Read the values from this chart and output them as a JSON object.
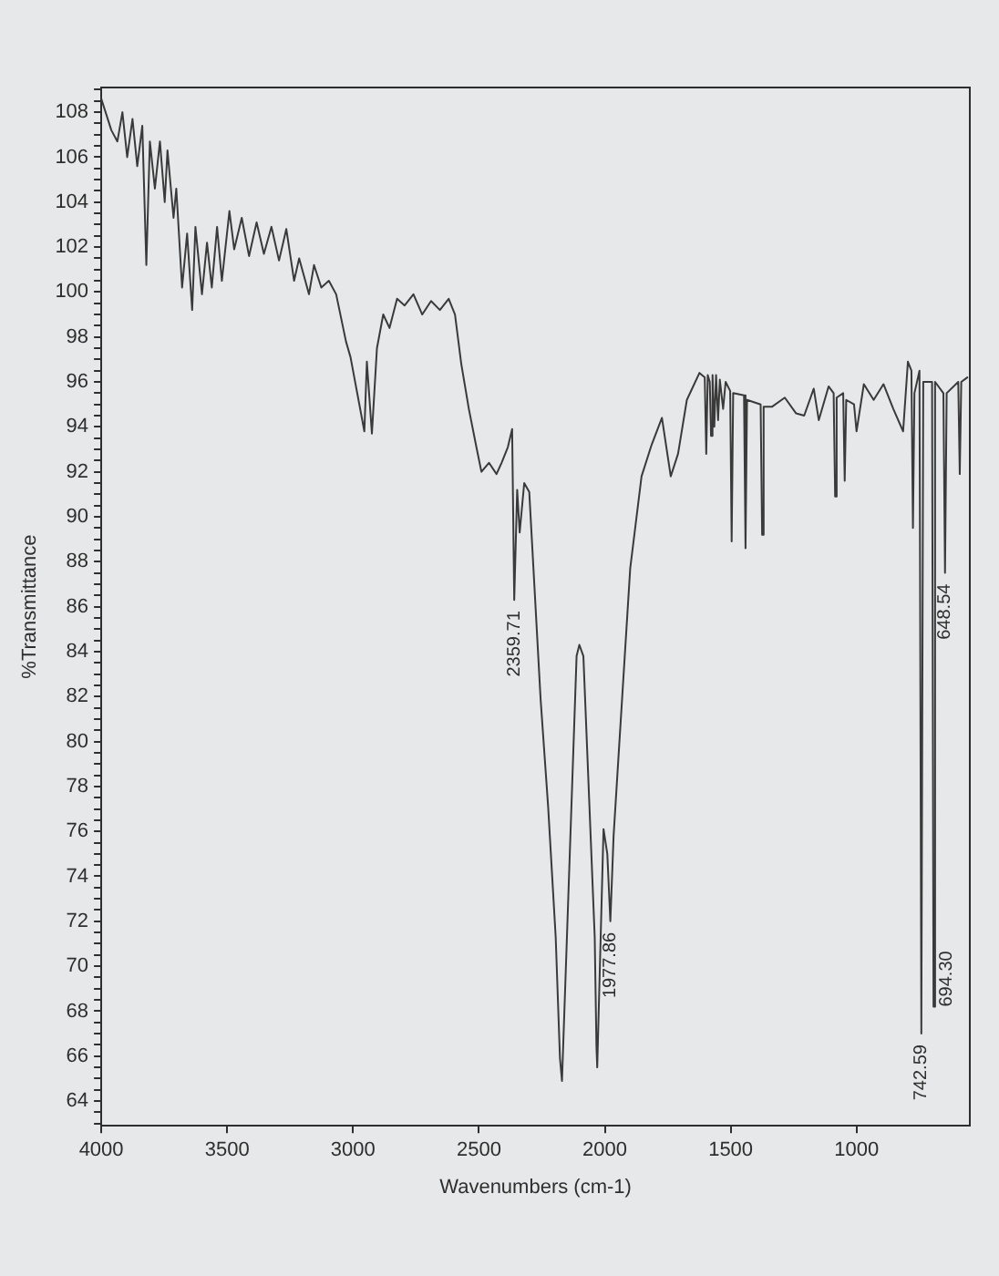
{
  "chart_data": {
    "type": "line",
    "xlabel": "Wavenumbers (cm-1)",
    "ylabel": "%Transmittance",
    "color": "#3a3a3a",
    "grid": false,
    "legend": false,
    "marker": "none",
    "line_style": "solid",
    "xlim": [
      4000,
      550
    ],
    "xticks": [
      4000,
      3500,
      3000,
      2500,
      2000,
      1500,
      1000
    ],
    "ylim": [
      62.9,
      109.1
    ],
    "yticks": [
      {
        "value": 63,
        "label": null
      },
      {
        "value": 63.5,
        "label": null
      },
      64,
      {
        "value": 64.5,
        "label": null
      },
      {
        "value": 65,
        "label": null
      },
      {
        "value": 65.5,
        "label": null
      },
      66,
      {
        "value": 66.5,
        "label": null
      },
      {
        "value": 67,
        "label": null
      },
      {
        "value": 67.5,
        "label": null
      },
      68,
      {
        "value": 68.5,
        "label": null
      },
      {
        "value": 69,
        "label": null
      },
      {
        "value": 69.5,
        "label": null
      },
      70,
      {
        "value": 70.5,
        "label": null
      },
      {
        "value": 71,
        "label": null
      },
      {
        "value": 71.5,
        "label": null
      },
      72,
      {
        "value": 72.5,
        "label": null
      },
      {
        "value": 73,
        "label": null
      },
      {
        "value": 73.5,
        "label": null
      },
      74,
      {
        "value": 74.5,
        "label": null
      },
      {
        "value": 75,
        "label": null
      },
      {
        "value": 75.5,
        "label": null
      },
      76,
      {
        "value": 76.5,
        "label": null
      },
      {
        "value": 77,
        "label": null
      },
      {
        "value": 77.5,
        "label": null
      },
      78,
      {
        "value": 78.5,
        "label": null
      },
      {
        "value": 79,
        "label": null
      },
      {
        "value": 79.5,
        "label": null
      },
      80,
      {
        "value": 80.5,
        "label": null
      },
      {
        "value": 81,
        "label": null
      },
      {
        "value": 81.5,
        "label": null
      },
      82,
      {
        "value": 82.5,
        "label": null
      },
      {
        "value": 83,
        "label": null
      },
      {
        "value": 83.5,
        "label": null
      },
      84,
      {
        "value": 84.5,
        "label": null
      },
      {
        "value": 85,
        "label": null
      },
      {
        "value": 85.5,
        "label": null
      },
      86,
      {
        "value": 86.5,
        "label": null
      },
      {
        "value": 87,
        "label": null
      },
      {
        "value": 87.5,
        "label": null
      },
      88,
      {
        "value": 88.5,
        "label": null
      },
      {
        "value": 89,
        "label": null
      },
      {
        "value": 89.5,
        "label": null
      },
      90,
      {
        "value": 90.5,
        "label": null
      },
      {
        "value": 91,
        "label": null
      },
      {
        "value": 91.5,
        "label": null
      },
      92,
      {
        "value": 92.5,
        "label": null
      },
      {
        "value": 93,
        "label": null
      },
      {
        "value": 93.5,
        "label": null
      },
      94,
      {
        "value": 94.5,
        "label": null
      },
      {
        "value": 95,
        "label": null
      },
      {
        "value": 95.5,
        "label": null
      },
      96,
      {
        "value": 96.5,
        "label": null
      },
      {
        "value": 97,
        "label": null
      },
      {
        "value": 97.5,
        "label": null
      },
      98,
      {
        "value": 98.5,
        "label": null
      },
      {
        "value": 99,
        "label": null
      },
      {
        "value": 99.5,
        "label": null
      },
      100,
      {
        "value": 100.5,
        "label": null
      },
      {
        "value": 101,
        "label": null
      },
      {
        "value": 101.5,
        "label": null
      },
      102,
      {
        "value": 102.5,
        "label": null
      },
      {
        "value": 103,
        "label": null
      },
      {
        "value": 103.5,
        "label": null
      },
      104,
      {
        "value": 104.5,
        "label": null
      },
      {
        "value": 105,
        "label": null
      },
      {
        "value": 105.5,
        "label": null
      },
      106,
      {
        "value": 106.5,
        "label": null
      },
      {
        "value": 107,
        "label": null
      },
      {
        "value": 107.5,
        "label": null
      },
      108,
      {
        "value": 108.5,
        "label": null
      },
      {
        "value": 109,
        "label": null
      }
    ],
    "x": [
      4000,
      3960,
      3936,
      3916,
      3897,
      3876,
      3857,
      3837,
      3821,
      3807,
      3787,
      3767,
      3748,
      3737,
      3713,
      3702,
      3679,
      3659,
      3639,
      3626,
      3600,
      3580,
      3561,
      3540,
      3521,
      3491,
      3472,
      3442,
      3413,
      3383,
      3354,
      3324,
      3294,
      3265,
      3234,
      3214,
      3175,
      3155,
      3126,
      3096,
      3067,
      3028,
      3010,
      2955,
      2945,
      2925,
      2905,
      2880,
      2855,
      2825,
      2795,
      2760,
      2725,
      2690,
      2655,
      2620,
      2595,
      2570,
      2540,
      2510,
      2490,
      2460,
      2430,
      2410,
      2385,
      2368,
      2359.71,
      2348,
      2338,
      2320,
      2300,
      2255,
      2225,
      2195,
      2178,
      2170,
      2112,
      2101,
      2085,
      2040,
      2033,
      2030,
      2005,
      1990,
      1977.86,
      1965,
      1944,
      1899,
      1854,
      1814,
      1773,
      1738,
      1709,
      1674,
      1624,
      1603,
      1597,
      1591,
      1583,
      1578,
      1572,
      1565,
      1558,
      1550,
      1543,
      1530,
      1520,
      1502,
      1496,
      1490,
      1447,
      1441,
      1435,
      1381,
      1375,
      1369,
      1335,
      1285,
      1240,
      1208,
      1170,
      1150,
      1111,
      1091,
      1085,
      1079,
      1053,
      1047,
      1041,
      1010,
      1000,
      971,
      932,
      893,
      854,
      815,
      796,
      782,
      776,
      770,
      750,
      742.59,
      735,
      700,
      694.3,
      688,
      655,
      648.54,
      642,
      596,
      590,
      584,
      560
    ],
    "values": [
      108.6,
      107.2,
      106.7,
      108.0,
      106.0,
      107.7,
      105.6,
      107.4,
      101.2,
      106.7,
      104.6,
      106.7,
      104.0,
      106.3,
      103.3,
      104.6,
      100.2,
      102.6,
      99.2,
      102.9,
      99.9,
      102.2,
      100.2,
      102.9,
      100.5,
      103.6,
      101.9,
      103.3,
      101.6,
      103.1,
      101.7,
      102.9,
      101.4,
      102.8,
      100.5,
      101.5,
      99.9,
      101.2,
      100.2,
      100.5,
      99.9,
      97.8,
      97.1,
      93.8,
      96.9,
      93.7,
      97.5,
      99.0,
      98.4,
      99.7,
      99.4,
      99.9,
      99.0,
      99.6,
      99.2,
      99.7,
      99.0,
      96.8,
      94.8,
      93.1,
      92.0,
      92.4,
      91.9,
      92.4,
      93.1,
      93.9,
      86.3,
      91.2,
      89.3,
      91.5,
      91.1,
      81.9,
      77.1,
      71.3,
      65.9,
      64.9,
      83.8,
      84.3,
      83.8,
      71.3,
      66.4,
      65.5,
      76.1,
      75.0,
      72.0,
      75.8,
      79.6,
      87.7,
      91.8,
      93.2,
      94.4,
      91.8,
      92.8,
      95.2,
      96.4,
      96.2,
      92.8,
      96.3,
      96.0,
      93.6,
      96.3,
      94.0,
      96.3,
      94.3,
      96.1,
      94.8,
      96.0,
      95.6,
      88.9,
      95.5,
      95.4,
      88.6,
      95.2,
      95.0,
      89.2,
      94.9,
      94.9,
      95.3,
      94.6,
      94.5,
      95.7,
      94.3,
      95.8,
      95.5,
      90.9,
      95.3,
      95.5,
      91.6,
      95.2,
      95.0,
      93.8,
      95.9,
      95.2,
      95.9,
      94.8,
      93.8,
      96.9,
      96.5,
      89.5,
      95.5,
      96.5,
      67.0,
      96.0,
      96.0,
      68.2,
      96.0,
      95.5,
      87.5,
      95.5,
      96.0,
      91.9,
      96.0,
      96.2
    ],
    "annotations": [
      {
        "text": "2359.71",
        "x": 2359.71,
        "y": 86.3
      },
      {
        "text": "1977.86",
        "x": 1977.86,
        "y": 72.0
      },
      {
        "text": "742.59",
        "x": 742.59,
        "y": 67.0
      },
      {
        "text": "694.30",
        "x": 694.3,
        "y": 68.2
      },
      {
        "text": "648.54",
        "x": 648.54,
        "y": 87.5
      }
    ]
  }
}
